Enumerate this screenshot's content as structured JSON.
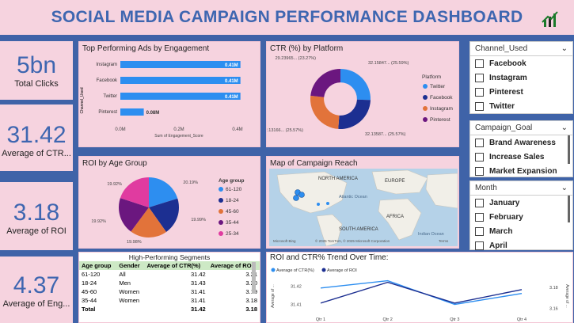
{
  "header": {
    "title": "SOCIAL MEDIA CAMPAIGN PERFORMANCE DASHBOARD",
    "logo_icon": "bar-chart-growth-icon"
  },
  "kpis": [
    {
      "value": "5bn",
      "label": "Total Clicks"
    },
    {
      "value": "31.42",
      "label": "Average of CTR..."
    },
    {
      "value": "3.18",
      "label": "Average of ROI"
    },
    {
      "value": "4.37",
      "label": "Average of Eng..."
    }
  ],
  "top_ads": {
    "title": "Top Performing Ads by Engagement",
    "ylabel": "Channel_Used",
    "xlabel": "Sum of Engagement_Score",
    "ticks": [
      "0.0M",
      "0.2M",
      "0.4M"
    ],
    "bars": [
      {
        "label": "Instagram",
        "value": 0.41,
        "text": "0.41M"
      },
      {
        "label": "Facebook",
        "value": 0.41,
        "text": "0.41M"
      },
      {
        "label": "Twitter",
        "value": 0.41,
        "text": "0.41M"
      },
      {
        "label": "Pinterest",
        "value": 0.08,
        "text": "0.08M"
      }
    ],
    "color": "#2d8ef0"
  },
  "ctr_platform": {
    "title": "CTR (%) by Platform",
    "legend_title": "Platform",
    "slices": [
      {
        "name": "Twitter",
        "value": 25.59,
        "label": "32.15847... (25.59%)",
        "color": "#2d8ef0"
      },
      {
        "name": "Facebook",
        "value": 25.57,
        "label": "32.13587... (25.57%)",
        "color": "#1c2f91"
      },
      {
        "name": "Instagram",
        "value": 25.57,
        "label": "32.13166... (25.57%)",
        "color": "#e2733a"
      },
      {
        "name": "Pinterest",
        "value": 23.27,
        "label": "29.23965... (23.27%)",
        "color": "#6b177f"
      }
    ]
  },
  "roi_age": {
    "title": "ROI by Age Group",
    "legend_title": "Age group",
    "slices": [
      {
        "name": "61-120",
        "value": 20.19,
        "label": "20.19%",
        "color": "#2d8ef0"
      },
      {
        "name": "18-24",
        "value": 19.99,
        "label": "19.99%",
        "color": "#1c2f91"
      },
      {
        "name": "45-60",
        "value": 19.98,
        "label": "19.98%",
        "color": "#e2733a"
      },
      {
        "name": "35-44",
        "value": 19.92,
        "label": "19.92%",
        "color": "#6b177f"
      },
      {
        "name": "25-34",
        "value": 19.92,
        "label": "19.92%",
        "color": "#e03ba0"
      }
    ]
  },
  "map": {
    "title": "Map of Campaign Reach",
    "labels": [
      "NORTH AMERICA",
      "EUROPE",
      "Atlantic Ocean",
      "AFRICA",
      "SOUTH AMERICA",
      "Indian Ocean"
    ],
    "credit": "© 2025 TomTom, © 2025 Microsoft Corporation",
    "terms": "Terms",
    "brand": "Microsoft Bing"
  },
  "segments": {
    "title": "High-Performing Segments",
    "columns": [
      "Age group",
      "Gender",
      "Average of CTR(%)",
      "Average of ROI"
    ],
    "rows": [
      [
        "61-120",
        "All",
        "31.42",
        "3.21"
      ],
      [
        "18-24",
        "Men",
        "31.43",
        "3.20"
      ],
      [
        "45-60",
        "Women",
        "31.41",
        "3.19"
      ],
      [
        "35-44",
        "Women",
        "31.41",
        "3.18"
      ]
    ],
    "total": [
      "Total",
      "",
      "31.42",
      "3.18"
    ]
  },
  "trend": {
    "title": "ROI and CTR% Trend Over Time:",
    "legend": [
      "Average of CTR(%)",
      "Average of ROI"
    ],
    "ylabel_left": "Average of ...",
    "ylabel_right": "Average of ...",
    "yleft_ticks": [
      "31.42",
      "31.41"
    ],
    "yright_ticks": [
      "3.18",
      "3.16"
    ]
  },
  "chart_data": {
    "type": "line",
    "title": "ROI and CTR% Trend Over Time:",
    "x": [
      "Qtr 1",
      "Qtr 2",
      "Qtr 3",
      "Qtr 4"
    ],
    "series": [
      {
        "name": "Average of CTR(%)",
        "values": [
          31.419,
          31.423,
          31.41,
          31.416
        ]
      },
      {
        "name": "Average of ROI",
        "values": [
          3.165,
          3.185,
          3.165,
          3.178
        ]
      }
    ],
    "colors": [
      "#2d8ef0",
      "#1c2f91"
    ]
  },
  "slicers": [
    {
      "title": "Channel_Used",
      "items": [
        "Facebook",
        "Instagram",
        "Pinterest",
        "Twitter"
      ]
    },
    {
      "title": "Campaign_Goal",
      "items": [
        "Brand Awareness",
        "Increase Sales",
        "Market Expansion"
      ]
    },
    {
      "title": "Month",
      "items": [
        "January",
        "February",
        "March",
        "April"
      ]
    }
  ]
}
